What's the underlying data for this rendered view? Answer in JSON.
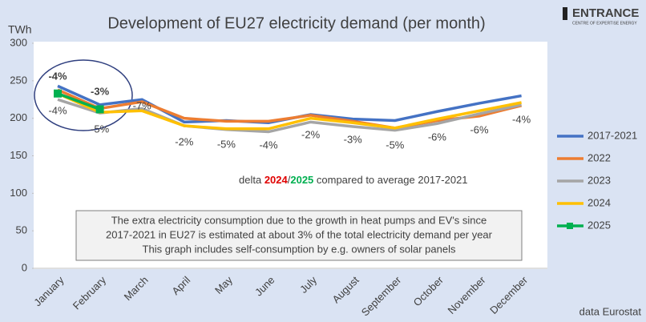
{
  "chart_data": {
    "type": "line",
    "title": "Development of EU27 electricity demand  (per month)",
    "y_label": "TWh",
    "logo": "ENTRANCE",
    "logo_subtitle": "CENTRE OF EXPERTISE ENERGY",
    "source": "data Eurostat",
    "categories": [
      "January",
      "February",
      "March",
      "April",
      "May",
      "June",
      "July",
      "August",
      "September",
      "October",
      "November",
      "December"
    ],
    "series": [
      {
        "name": "2017-2021",
        "color": "#4472c4",
        "values": [
          243,
          218,
          225,
          195,
          197,
          194,
          205,
          199,
          197,
          209,
          220,
          230
        ]
      },
      {
        "name": "2022",
        "color": "#ed7d31",
        "values": [
          238,
          213,
          222,
          200,
          196,
          196,
          204,
          196,
          187,
          197,
          203,
          217
        ]
      },
      {
        "name": "2023",
        "color": "#a5a5a5",
        "values": [
          225,
          207,
          213,
          190,
          185,
          182,
          195,
          189,
          184,
          193,
          206,
          218
        ]
      },
      {
        "name": "2024",
        "color": "#ffc000",
        "values": [
          233,
          208,
          210,
          190,
          186,
          186,
          200,
          194,
          187,
          199,
          210,
          221
        ]
      },
      {
        "name": "2025",
        "color": "#00b050",
        "values": [
          233,
          212,
          null,
          null,
          null,
          null,
          null,
          null,
          null,
          null,
          null,
          null
        ]
      }
    ],
    "delta_2025": [
      "-4%",
      "-3%"
    ],
    "delta_2024": [
      "-4%",
      "-5%",
      "-7%",
      "-2%",
      "-5%",
      "-4%",
      "-2%",
      "-3%",
      "-5%",
      "-6%",
      "-6%",
      "-4%"
    ],
    "delta_note": [
      "delta ",
      "2024",
      "/",
      "2025",
      " compared to average 2017-2021"
    ],
    "box_text": [
      "The extra electricity consumption due to the growth in heat pumps and EV's since",
      "2017-2021 in EU27 is estimated at about 3% of the total electricity demand per year",
      "This graph includes self-consumption by e.g. owners of solar panels"
    ],
    "ylim": [
      0,
      300
    ],
    "yticks": [
      0,
      50,
      100,
      150,
      200,
      250,
      300
    ]
  }
}
